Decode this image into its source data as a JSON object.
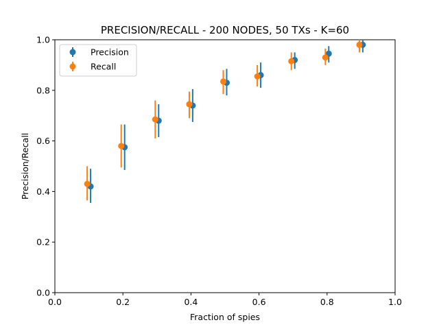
{
  "chart_data": {
    "type": "scatter",
    "title": "PRECISION/RECALL - 200 NODES, 50 TXs - K=60",
    "xlabel": "Fraction of spies",
    "ylabel": "Precision/Recall",
    "xlim": [
      0.0,
      1.0
    ],
    "ylim": [
      0.0,
      1.0
    ],
    "xticks": [
      "0.0",
      "0.2",
      "0.4",
      "0.6",
      "0.8",
      "1.0"
    ],
    "yticks": [
      "0.0",
      "0.2",
      "0.4",
      "0.6",
      "0.8",
      "1.0"
    ],
    "grid": false,
    "legend_position": "top-left",
    "series": [
      {
        "name": "Precision",
        "color": "#1f77b4",
        "x": [
          0.105,
          0.205,
          0.305,
          0.405,
          0.505,
          0.605,
          0.705,
          0.805,
          0.905
        ],
        "y": [
          0.42,
          0.575,
          0.68,
          0.74,
          0.83,
          0.86,
          0.92,
          0.945,
          0.98
        ],
        "yerr_low": [
          0.355,
          0.485,
          0.615,
          0.675,
          0.78,
          0.81,
          0.885,
          0.91,
          0.95
        ],
        "yerr_high": [
          0.49,
          0.665,
          0.745,
          0.805,
          0.885,
          0.91,
          0.95,
          0.975,
          1.0
        ]
      },
      {
        "name": "Recall",
        "color": "#ff7f0e",
        "x": [
          0.095,
          0.195,
          0.295,
          0.395,
          0.495,
          0.595,
          0.695,
          0.795,
          0.895
        ],
        "y": [
          0.43,
          0.58,
          0.685,
          0.745,
          0.835,
          0.855,
          0.915,
          0.93,
          0.98
        ],
        "yerr_low": [
          0.365,
          0.495,
          0.61,
          0.69,
          0.785,
          0.815,
          0.88,
          0.9,
          0.95
        ],
        "yerr_high": [
          0.5,
          0.665,
          0.76,
          0.795,
          0.88,
          0.9,
          0.95,
          0.965,
          1.0
        ]
      }
    ]
  }
}
